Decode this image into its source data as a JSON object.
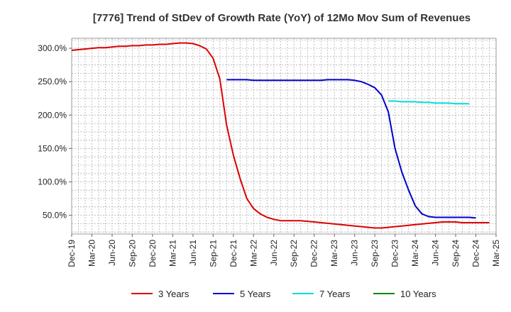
{
  "chart_data": {
    "type": "line",
    "title": "[7776]  Trend of StDev of Growth Rate (YoY) of 12Mo Mov Sum of Revenues",
    "xlabel": "",
    "ylabel": "",
    "x_ticks": [
      "Dec-19",
      "Mar-20",
      "Jun-20",
      "Sep-20",
      "Dec-20",
      "Mar-21",
      "Jun-21",
      "Sep-21",
      "Dec-21",
      "Mar-22",
      "Jun-22",
      "Sep-22",
      "Dec-22",
      "Mar-23",
      "Jun-23",
      "Sep-23",
      "Dec-23",
      "Mar-24",
      "Jun-24",
      "Sep-24",
      "Dec-24",
      "Mar-25"
    ],
    "y_ticks": [
      50,
      100,
      150,
      200,
      250,
      300
    ],
    "y_tick_labels": [
      "50.0%",
      "100.0%",
      "150.0%",
      "200.0%",
      "250.0%",
      "300.0%"
    ],
    "ylim": [
      22,
      315
    ],
    "x_index_range": [
      0,
      63
    ],
    "grid": true,
    "legend_position": "bottom",
    "series": [
      {
        "name": "3 Years",
        "color": "#dd0000",
        "start_index": 0,
        "values": [
          297,
          298,
          299,
          300,
          301,
          301,
          302,
          303,
          303,
          304,
          304,
          305,
          305,
          306,
          306,
          307,
          308,
          308,
          307,
          304,
          299,
          285,
          254,
          185,
          140,
          105,
          75,
          60,
          52,
          47,
          44,
          42,
          42,
          42,
          42,
          41,
          40,
          39,
          38,
          37,
          36,
          35,
          34,
          33,
          32,
          31,
          31,
          32,
          33,
          34,
          35,
          36,
          37,
          38,
          39,
          40,
          40,
          40,
          39,
          39,
          39,
          39,
          39
        ],
        "label_key": "legend.0.label"
      },
      {
        "name": "5 Years",
        "color": "#0000cc",
        "start_index": 23,
        "values": [
          253,
          253,
          253,
          253,
          252,
          252,
          252,
          252,
          252,
          252,
          252,
          252,
          252,
          252,
          252,
          253,
          253,
          253,
          253,
          252,
          250,
          246,
          241,
          230,
          205,
          150,
          115,
          88,
          64,
          52,
          48,
          47,
          47,
          47,
          47,
          47,
          47,
          46
        ],
        "label_key": "legend.1.label"
      },
      {
        "name": "7 Years",
        "color": "#00dddd",
        "start_index": 47,
        "values": [
          221,
          221,
          220,
          220,
          220,
          219,
          219,
          218,
          218,
          218,
          217,
          217,
          217
        ],
        "label_key": "legend.2.label"
      },
      {
        "name": "10 Years",
        "color": "#008800",
        "start_index": 0,
        "values": [],
        "label_key": "legend.3.label"
      }
    ]
  },
  "legend": [
    {
      "label": "3 Years"
    },
    {
      "label": "5 Years"
    },
    {
      "label": "7 Years"
    },
    {
      "label": "10 Years"
    }
  ]
}
